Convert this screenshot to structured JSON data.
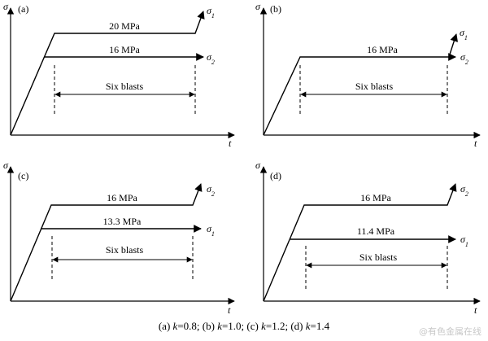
{
  "panels": [
    {
      "tag": "(a)",
      "upper_label": "20 MPa",
      "lower_label": "16 MPa",
      "upper_sigma": "σ",
      "upper_sub": "1",
      "lower_sigma": "σ",
      "lower_sub": "2",
      "span_label": "Six blasts",
      "y_axis": "σ",
      "x_axis": "t"
    },
    {
      "tag": "(b)",
      "level_label": "16 MPa",
      "upper_sigma": "σ",
      "upper_sub": "1",
      "lower_sigma": "σ",
      "lower_sub": "2",
      "span_label": "Six blasts",
      "y_axis": "σ",
      "x_axis": "t"
    },
    {
      "tag": "(c)",
      "upper_label": "16 MPa",
      "lower_label": "13.3 MPa",
      "upper_sigma": "σ",
      "upper_sub": "2",
      "lower_sigma": "σ",
      "lower_sub": "1",
      "span_label": "Six blasts",
      "y_axis": "σ",
      "x_axis": "t"
    },
    {
      "tag": "(d)",
      "upper_label": "16 MPa",
      "lower_label": "11.4 MPa",
      "upper_sigma": "σ",
      "upper_sub": "2",
      "lower_sigma": "σ",
      "lower_sub": "1",
      "span_label": "Six blasts",
      "y_axis": "σ",
      "x_axis": "t"
    }
  ],
  "caption": "(a) k=0.8; (b) k=1.0; (c) k=1.2; (d) k=1.4",
  "caption_parts": {
    "a_open": "(a) ",
    "a_k": "k",
    "a_val": "=0.8; ",
    "b_open": "(b) ",
    "b_k": "k",
    "b_val": "=1.0; ",
    "c_open": "(c) ",
    "c_k": "k",
    "c_val": "=1.2; ",
    "d_open": "(d) ",
    "d_k": "k",
    "d_val": "=1.4"
  },
  "watermark": "@有色金属在线"
}
